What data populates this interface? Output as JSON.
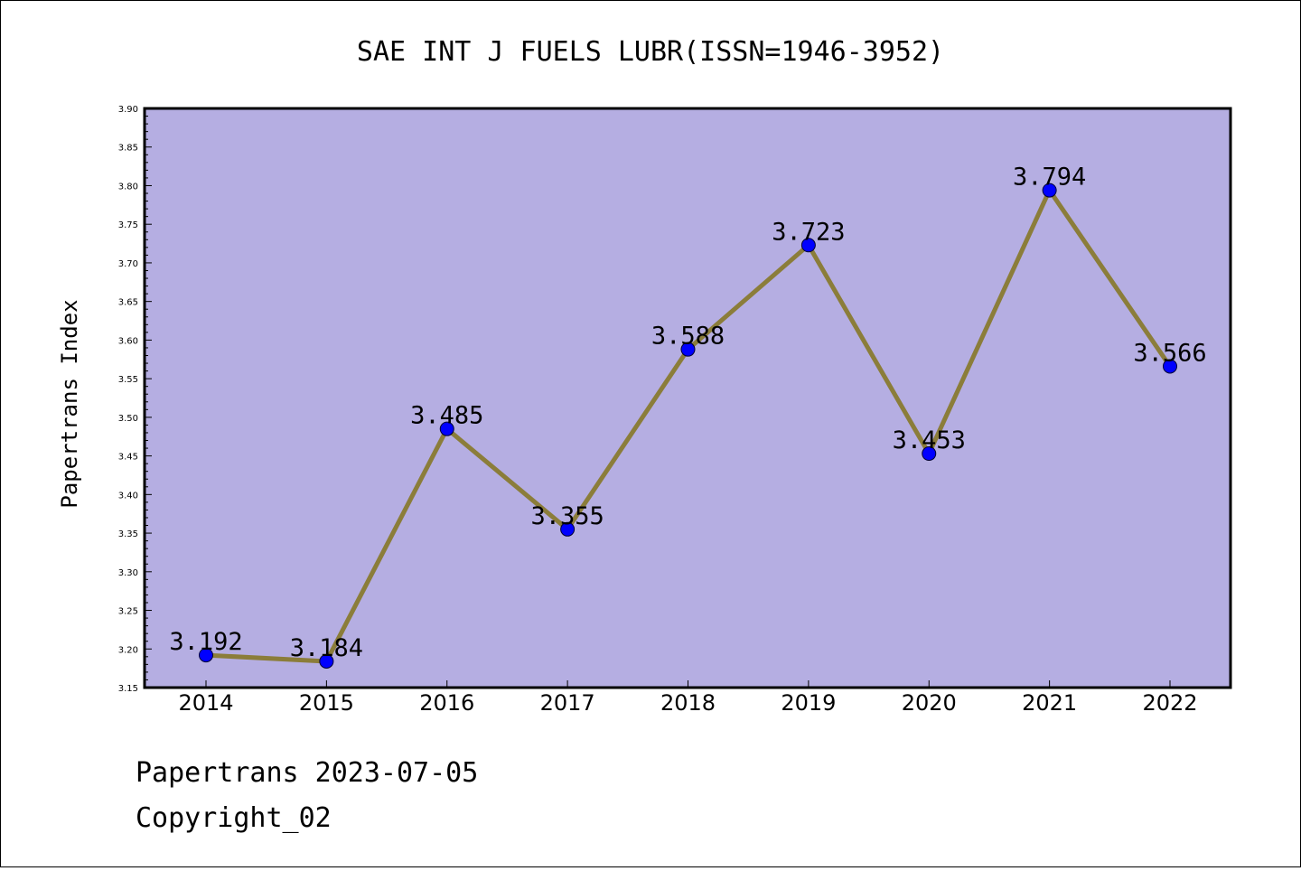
{
  "chart_data": {
    "type": "line",
    "title": "SAE INT J FUELS LUBR(ISSN=1946-3952)",
    "xlabel": "",
    "ylabel": "Papertrans Index",
    "categories": [
      "2014",
      "2015",
      "2016",
      "2017",
      "2018",
      "2019",
      "2020",
      "2021",
      "2022"
    ],
    "series": [
      {
        "values": [
          3.192,
          3.184,
          3.485,
          3.355,
          3.588,
          3.723,
          3.453,
          3.794,
          3.566
        ],
        "labels": [
          "3.192",
          "3.184",
          "3.485",
          "3.355",
          "3.588",
          "3.723",
          "3.453",
          "3.794",
          "3.566"
        ]
      }
    ],
    "ylim": [
      3.15,
      3.9
    ],
    "yticks": [
      "3.15",
      "3.20",
      "3.25",
      "3.30",
      "3.35",
      "3.40",
      "3.45",
      "3.50",
      "3.55",
      "3.60",
      "3.65",
      "3.70",
      "3.75",
      "3.80",
      "3.85",
      "3.90"
    ],
    "grid": false,
    "colors": {
      "plot_background": "#b5aee2",
      "line": "#8b7d3a",
      "marker": "#0000ff"
    }
  },
  "footer": {
    "line1": "Papertrans 2023-07-05",
    "line2": "Copyright_02"
  }
}
